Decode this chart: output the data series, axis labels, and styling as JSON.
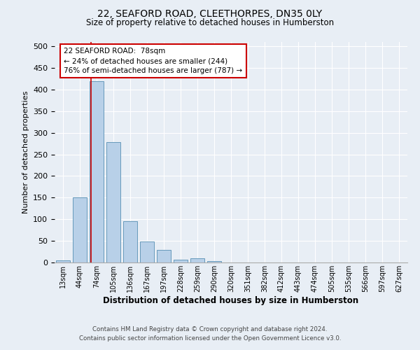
{
  "title_line1": "22, SEAFORD ROAD, CLEETHORPES, DN35 0LY",
  "title_line2": "Size of property relative to detached houses in Humberston",
  "xlabel": "Distribution of detached houses by size in Humberston",
  "ylabel": "Number of detached properties",
  "bar_labels": [
    "13sqm",
    "44sqm",
    "74sqm",
    "105sqm",
    "136sqm",
    "167sqm",
    "197sqm",
    "228sqm",
    "259sqm",
    "290sqm",
    "320sqm",
    "351sqm",
    "382sqm",
    "412sqm",
    "443sqm",
    "474sqm",
    "505sqm",
    "535sqm",
    "566sqm",
    "597sqm",
    "627sqm"
  ],
  "bar_values": [
    5,
    150,
    420,
    278,
    95,
    48,
    29,
    6,
    10,
    4,
    0,
    0,
    0,
    0,
    0,
    0,
    0,
    0,
    0,
    0,
    0
  ],
  "bar_color": "#b8d0e8",
  "bar_edge_color": "#6699bb",
  "vline_x": 1.68,
  "vline_color": "#cc0000",
  "annotation_text": "22 SEAFORD ROAD:  78sqm\n← 24% of detached houses are smaller (244)\n76% of semi-detached houses are larger (787) →",
  "annotation_box_color": "#ffffff",
  "annotation_box_edge": "#cc0000",
  "ylim": [
    0,
    510
  ],
  "yticks": [
    0,
    50,
    100,
    150,
    200,
    250,
    300,
    350,
    400,
    450,
    500
  ],
  "footer_line1": "Contains HM Land Registry data © Crown copyright and database right 2024.",
  "footer_line2": "Contains public sector information licensed under the Open Government Licence v3.0.",
  "bg_color": "#e8eef5",
  "plot_bg_color": "#e8eef5"
}
